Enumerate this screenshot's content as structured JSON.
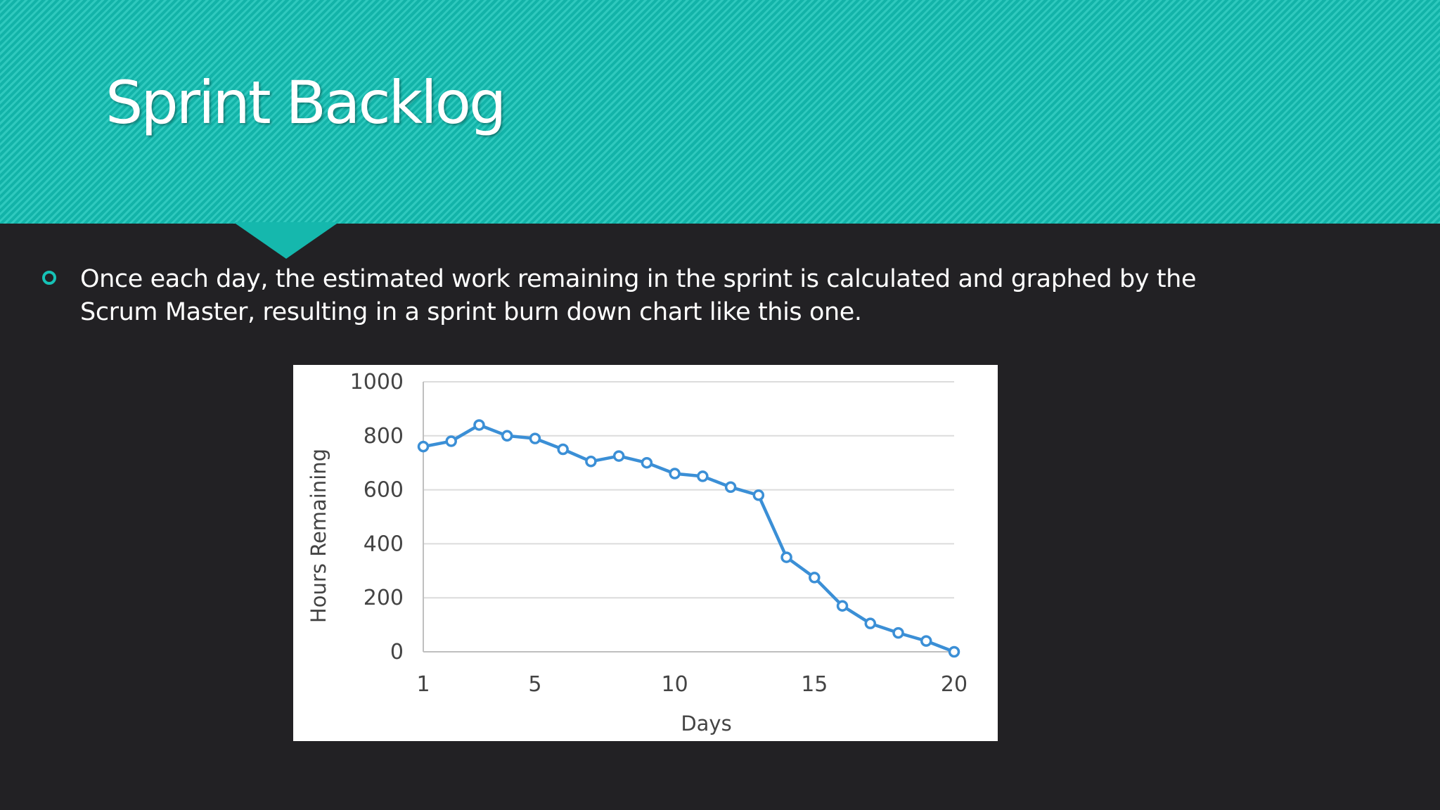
{
  "slide": {
    "title": "Sprint Backlog",
    "bullet_text": "Once each day, the estimated work remaining in the sprint is calculated and graphed by the Scrum Master, resulting in a sprint burn down chart like this one.",
    "colors": {
      "header_teal": "#14bfb3",
      "background": "#222124",
      "bullet_ring": "#16c2b6",
      "text": "#ffffff"
    }
  },
  "chart_data": {
    "type": "line",
    "title": "",
    "xlabel": "Days",
    "ylabel": "Hours Remaining",
    "xlim": [
      1,
      20
    ],
    "ylim": [
      0,
      1000
    ],
    "x_ticks": [
      1,
      5,
      10,
      15,
      20
    ],
    "y_ticks": [
      0,
      200,
      400,
      600,
      800,
      1000
    ],
    "grid": "horizontal",
    "line_color": "#3b8fd6",
    "marker": "hollow-circle",
    "series": [
      {
        "x": [
          1,
          2,
          3,
          4,
          5,
          6,
          7,
          8,
          9,
          10,
          11,
          12,
          13,
          14,
          15,
          16,
          17,
          18,
          19,
          20
        ],
        "values": [
          760,
          780,
          840,
          800,
          790,
          750,
          705,
          725,
          700,
          660,
          650,
          610,
          580,
          350,
          275,
          170,
          105,
          70,
          40,
          0
        ]
      }
    ]
  }
}
